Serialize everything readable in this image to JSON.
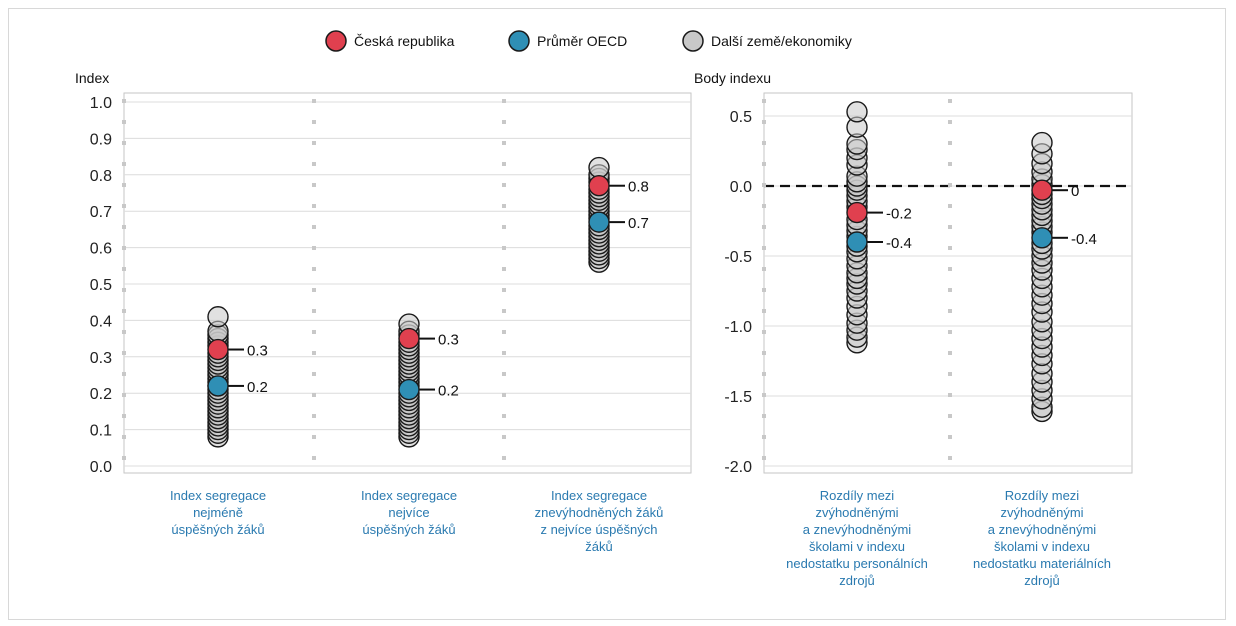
{
  "legend": [
    {
      "label": "Česká republika",
      "color": "#e0404f"
    },
    {
      "label": "Průměr OECD",
      "color": "#2f8fb5"
    },
    {
      "label": "Další země/ekonomiky",
      "color": "#c8c8c8"
    }
  ],
  "chart_data": [
    {
      "type": "scatter",
      "ylabel": "Index",
      "ylim": [
        0,
        1.0
      ],
      "yticks": [
        "0.0",
        "0.1",
        "0.2",
        "0.3",
        "0.4",
        "0.5",
        "0.6",
        "0.7",
        "0.8",
        "0.9",
        "1.0"
      ],
      "grid": true,
      "categories": [
        [
          "Index segregace",
          "nejméně",
          "úspěšných žáků"
        ],
        [
          "Index segregace",
          "nejvíce",
          "úspěšných žáků"
        ],
        [
          "Index segregace",
          "znevýhodněných žáků",
          "z nejvíce úspěšných",
          "žáků"
        ]
      ],
      "series": [
        {
          "name": "Česká republika",
          "values": [
            0.32,
            0.35,
            0.77
          ],
          "labels": [
            "0.3",
            "0.3",
            "0.8"
          ]
        },
        {
          "name": "Průměr OECD",
          "values": [
            0.22,
            0.21,
            0.67
          ],
          "labels": [
            "0.2",
            "0.2",
            "0.7"
          ]
        },
        {
          "name": "Další země/ekonomiky",
          "values": [
            [
              0.08,
              0.09,
              0.1,
              0.11,
              0.12,
              0.13,
              0.14,
              0.15,
              0.16,
              0.17,
              0.18,
              0.19,
              0.2,
              0.21,
              0.22,
              0.23,
              0.24,
              0.25,
              0.26,
              0.27,
              0.28,
              0.29,
              0.3,
              0.31,
              0.33,
              0.34,
              0.35,
              0.36,
              0.37,
              0.41
            ],
            [
              0.08,
              0.09,
              0.1,
              0.11,
              0.12,
              0.13,
              0.14,
              0.15,
              0.16,
              0.17,
              0.18,
              0.19,
              0.2,
              0.22,
              0.23,
              0.24,
              0.25,
              0.26,
              0.27,
              0.28,
              0.29,
              0.3,
              0.31,
              0.32,
              0.33,
              0.34,
              0.36,
              0.37,
              0.39
            ],
            [
              0.56,
              0.57,
              0.58,
              0.59,
              0.6,
              0.61,
              0.62,
              0.63,
              0.64,
              0.65,
              0.66,
              0.68,
              0.69,
              0.7,
              0.71,
              0.72,
              0.73,
              0.74,
              0.75,
              0.76,
              0.78,
              0.79,
              0.8,
              0.82
            ]
          ]
        }
      ]
    },
    {
      "type": "scatter",
      "ylabel": "Body indexu",
      "ylim": [
        -2.0,
        0.5
      ],
      "yticks": [
        "-2.0",
        "-1.5",
        "-1.0",
        "-0.5",
        "0.0",
        "0.5"
      ],
      "grid": true,
      "reference_line": 0,
      "categories": [
        [
          "Rozdíly mezi",
          "zvýhodněnými",
          "a znevýhodněnými",
          "školami v indexu",
          "nedostatku personálních",
          "zdrojů"
        ],
        [
          "Rozdíly mezi",
          "zvýhodněnými",
          "a znevýhodněnými",
          "školami v indexu",
          "nedostatku materiálních",
          "zdrojů"
        ]
      ],
      "series": [
        {
          "name": "Česká republika",
          "values": [
            -0.19,
            -0.03
          ],
          "labels": [
            "-0.2",
            "0"
          ]
        },
        {
          "name": "Průměr OECD",
          "values": [
            -0.4,
            -0.37
          ],
          "labels": [
            "-0.4",
            "-0.4"
          ]
        },
        {
          "name": "Další země/ekonomiky",
          "values": [
            [
              -1.12,
              -1.08,
              -1.03,
              -0.98,
              -0.92,
              -0.86,
              -0.8,
              -0.75,
              -0.7,
              -0.66,
              -0.62,
              -0.57,
              -0.52,
              -0.47,
              -0.43,
              -0.36,
              -0.32,
              -0.28,
              -0.24,
              -0.15,
              -0.11,
              -0.07,
              -0.03,
              0.0,
              0.03,
              0.07,
              0.15,
              0.2,
              0.26,
              0.3,
              0.42,
              0.53
            ],
            [
              -1.61,
              -1.58,
              -1.52,
              -1.46,
              -1.4,
              -1.34,
              -1.27,
              -1.21,
              -1.15,
              -1.09,
              -1.03,
              -0.97,
              -0.9,
              -0.84,
              -0.78,
              -0.72,
              -0.66,
              -0.6,
              -0.55,
              -0.5,
              -0.45,
              -0.41,
              -0.33,
              -0.29,
              -0.25,
              -0.21,
              -0.17,
              -0.13,
              -0.09,
              -0.06,
              0.01,
              0.05,
              0.1,
              0.16,
              0.23,
              0.31
            ]
          ]
        }
      ]
    }
  ]
}
